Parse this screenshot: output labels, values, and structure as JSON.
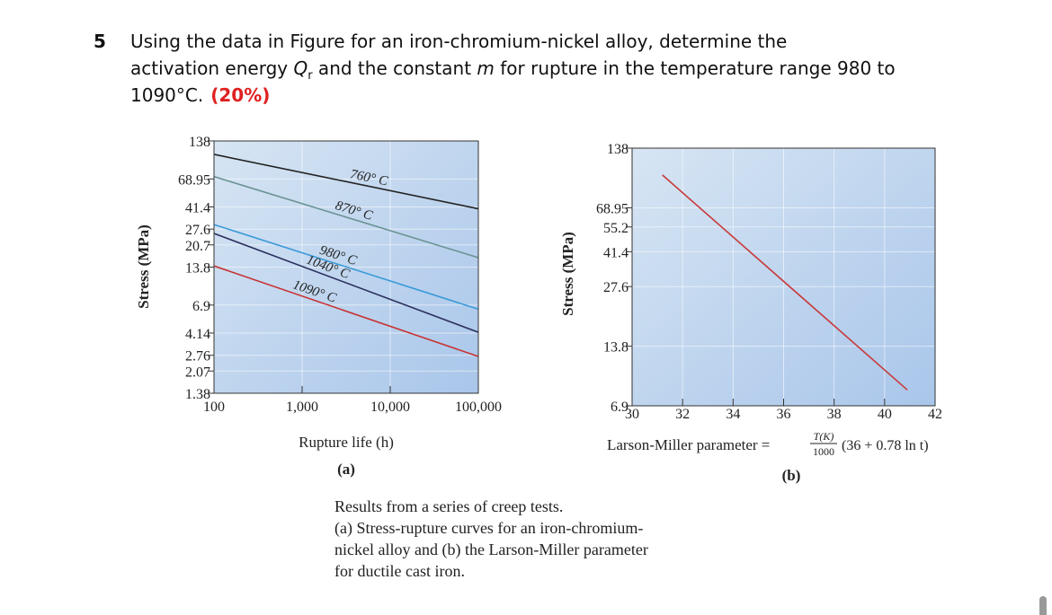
{
  "question": {
    "number": "5",
    "line1": "Using the data in Figure for an iron-chromium-nickel alloy, determine the",
    "line2a": "activation energy ",
    "symbol_q": "Q",
    "subscript_r": "r",
    "line2b": " and the constant ",
    "symbol_m": "m",
    "line2c": " for rupture in the temperature range 980 to",
    "line3": "1090°C.",
    "weight": "(20%)"
  },
  "chart_data": [
    {
      "type": "line",
      "xlabel": "Rupture life (h)",
      "ylabel": "Stress (MPa)",
      "panel": "(a)",
      "xlog": true,
      "ylog": true,
      "grid": true,
      "xlim": [
        100,
        100000
      ],
      "ylim": [
        1.38,
        138
      ],
      "xticks": [
        100,
        {
          "value": 1000,
          "label": "1,000"
        },
        {
          "value": 10000,
          "label": "10,000"
        },
        {
          "value": 100000,
          "label": "100,000"
        }
      ],
      "yticks": [
        138,
        68.95,
        41.4,
        27.6,
        20.7,
        13.8,
        6.9,
        4.14,
        2.76,
        2.07,
        1.38
      ],
      "series": [
        {
          "name": "760° C",
          "color": "#222222",
          "x": [
            100,
            100000
          ],
          "values": [
            108,
            40
          ]
        },
        {
          "name": "870° C",
          "color": "#6a9393",
          "x": [
            100,
            100000
          ],
          "values": [
            72,
            16.4
          ]
        },
        {
          "name": "980° C",
          "color": "#3a9ad9",
          "x": [
            100,
            100000
          ],
          "values": [
            30,
            6.4
          ]
        },
        {
          "name": "1040° C",
          "color": "#2b2f5e",
          "x": [
            100,
            100000
          ],
          "values": [
            25.5,
            4.2
          ]
        },
        {
          "name": "1090° C",
          "color": "#c83232",
          "x": [
            100,
            100000
          ],
          "values": [
            14.1,
            2.7
          ]
        }
      ]
    },
    {
      "type": "line",
      "xlabel": "Larson-Miller parameter =",
      "xlabel_numerator": "T(K)",
      "xlabel_denominator": "1000",
      "xlabel_tail": "(36 + 0.78 ln t)",
      "ylabel": "Stress (MPa)",
      "panel": "(b)",
      "xlog": false,
      "ylog": true,
      "grid": true,
      "xlim": [
        30,
        42
      ],
      "ylim": [
        6.9,
        138
      ],
      "xticks": [
        30,
        32,
        34,
        36,
        38,
        40,
        42
      ],
      "yticks": [
        138,
        68.95,
        55.2,
        41.4,
        27.6,
        13.8,
        6.9
      ],
      "series": [
        {
          "color": "#c83a3a",
          "x": [
            31.2,
            40.9
          ],
          "values": [
            101,
            8.3
          ]
        }
      ]
    }
  ],
  "caption": {
    "lines": [
      "Results from a series of creep tests.",
      "(a) Stress-rupture curves for an iron-chromium-",
      "nickel alloy and (b) the Larson-Miller parameter",
      "for ductile cast iron."
    ]
  }
}
